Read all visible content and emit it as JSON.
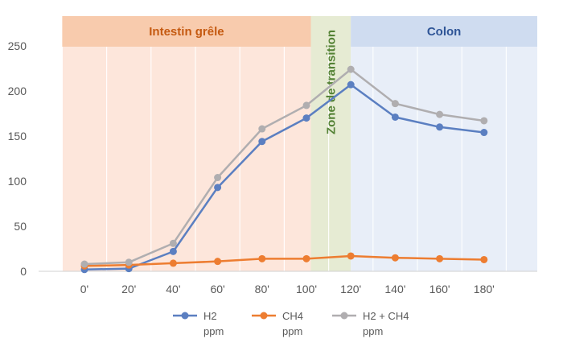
{
  "chart_data": {
    "type": "line",
    "categories": [
      "0'",
      "20'",
      "40'",
      "60'",
      "80'",
      "100'",
      "120'",
      "140'",
      "160'",
      "180'"
    ],
    "ylim": [
      0,
      250
    ],
    "yticks": [
      0,
      50,
      100,
      150,
      200,
      250
    ],
    "grid": "vertical",
    "zones": [
      {
        "label": "Intestin grêle",
        "from": -0.5,
        "to": 5.1,
        "fill": "#fde6db",
        "header": "#f8cbad",
        "color": "#c55a11",
        "orientation": "horizontal"
      },
      {
        "label": "Zone de transition",
        "from": 5.1,
        "to": 6.0,
        "fill": "#e6ebd3",
        "header": "#e0e2b6",
        "color": "#548235",
        "orientation": "vertical"
      },
      {
        "label": "Colon",
        "from": 6.0,
        "to": 10.3,
        "fill": "#e8eef8",
        "header": "#cfdcf0",
        "color": "#2f5597",
        "orientation": "horizontal"
      }
    ],
    "series": [
      {
        "name": "H2",
        "name_line2": "ppm",
        "color": "#5b7fc1",
        "values": [
          2,
          3,
          22,
          93,
          144,
          170,
          207,
          171,
          160,
          154
        ]
      },
      {
        "name": "CH4",
        "name_line2": "ppm",
        "color": "#ed7d31",
        "values": [
          6,
          7,
          9,
          11,
          14,
          14,
          17,
          15,
          14,
          13
        ]
      },
      {
        "name": "H2 + CH4",
        "name_line2": "ppm",
        "color": "#b0aeb0",
        "values": [
          8,
          10,
          31,
          104,
          158,
          184,
          224,
          186,
          174,
          167
        ]
      }
    ],
    "legend_position": "bottom"
  }
}
